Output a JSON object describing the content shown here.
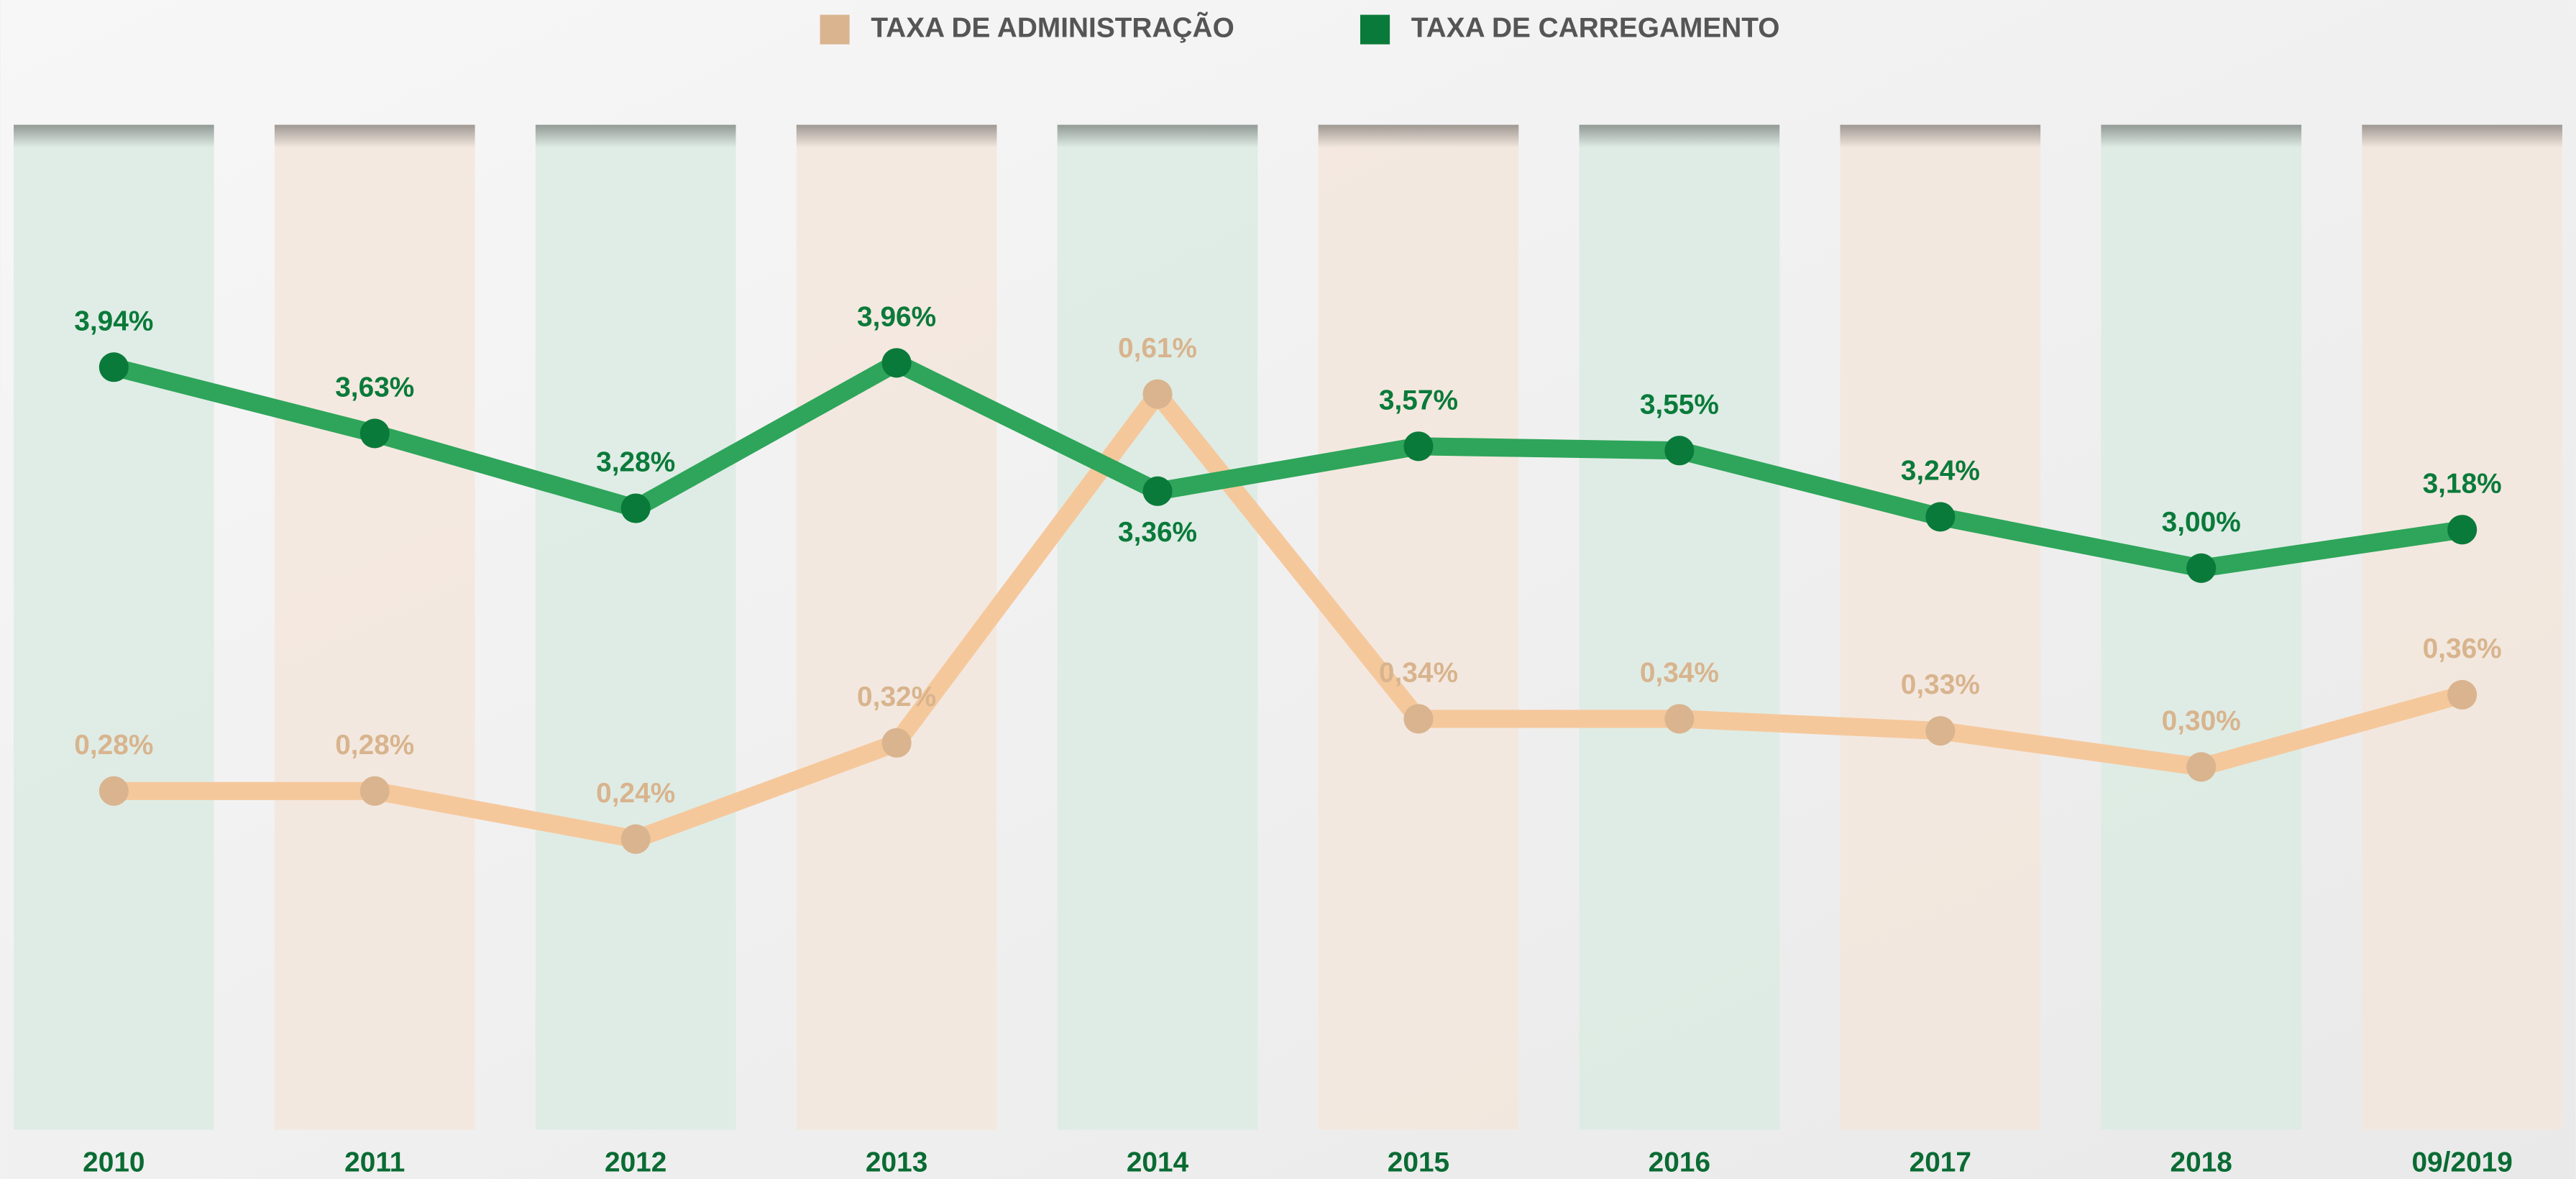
{
  "chart_data": {
    "type": "line",
    "categories": [
      "2010",
      "2011",
      "2012",
      "2013",
      "2014",
      "2015",
      "2016",
      "2017",
      "2018",
      "09/2019"
    ],
    "series": [
      {
        "name": "TAXA DE ADMINISTRAÇÃO",
        "color": "#f5c89c",
        "marker_color": "#d9b48f",
        "label_color": "#d8b48e",
        "values": [
          0.28,
          0.28,
          0.24,
          0.32,
          0.61,
          0.34,
          0.34,
          0.33,
          0.3,
          0.36
        ],
        "value_labels": [
          "0,28%",
          "0,28%",
          "0,24%",
          "0,32%",
          "0,61%",
          "0,34%",
          "0,34%",
          "0,33%",
          "0,30%",
          "0,36%"
        ]
      },
      {
        "name": "TAXA DE CARREGAMENTO",
        "color": "#2ea55a",
        "marker_color": "#0a7a3a",
        "label_color": "#0a7a3a",
        "values": [
          3.94,
          3.63,
          3.28,
          3.96,
          3.36,
          3.57,
          3.55,
          3.24,
          3.0,
          3.18
        ],
        "value_labels": [
          "3,94%",
          "3,63%",
          "3,28%",
          "3,96%",
          "3,36%",
          "3,57%",
          "3,55%",
          "3,24%",
          "3,00%",
          "3,18%"
        ]
      }
    ],
    "legend": "top"
  }
}
